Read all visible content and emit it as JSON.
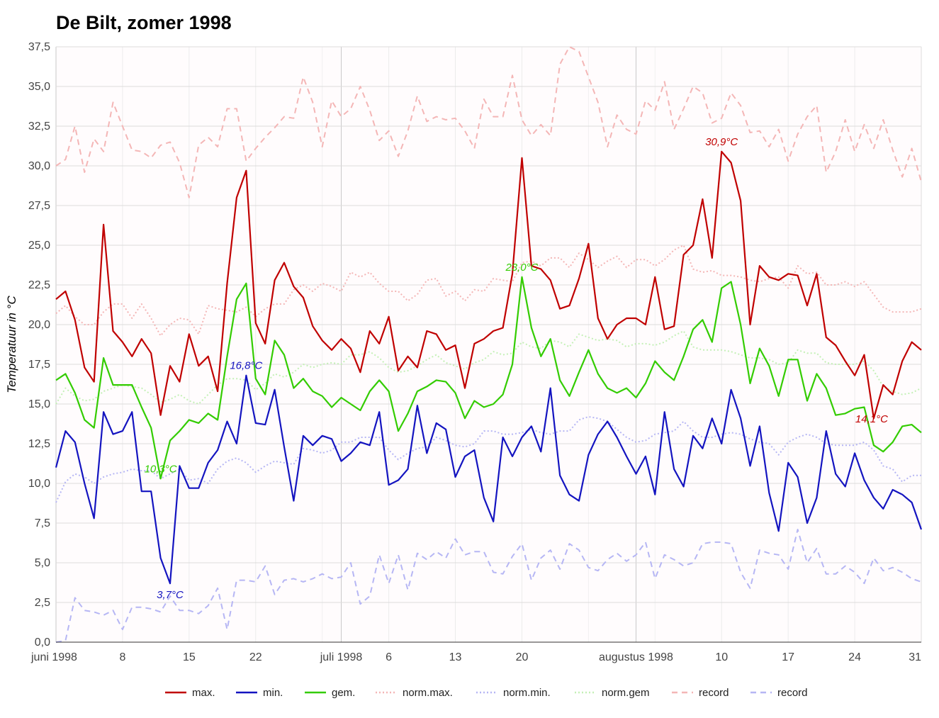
{
  "chart_data": {
    "type": "line",
    "title": "De Bilt, zomer 1998",
    "ylabel": "Temperatuur in °C",
    "ylim": [
      0,
      37.5
    ],
    "xlim": [
      "1998-06-01",
      "1998-08-31"
    ],
    "grid": true,
    "legend_position": "bottom",
    "y_ticks": [
      "0,0",
      "2,5",
      "5,0",
      "7,5",
      "10,0",
      "12,5",
      "15,0",
      "17,5",
      "20,0",
      "22,5",
      "25,0",
      "27,5",
      "30,0",
      "32,5",
      "35,0",
      "37,5"
    ],
    "x_ticks": [
      {
        "date": "1998-06-01",
        "label": "juni 1998"
      },
      {
        "date": "1998-06-08",
        "label": "8"
      },
      {
        "date": "1998-06-15",
        "label": "15"
      },
      {
        "date": "1998-06-22",
        "label": "22"
      },
      {
        "date": "1998-07-01",
        "label": "juli 1998"
      },
      {
        "date": "1998-07-06",
        "label": "6"
      },
      {
        "date": "1998-07-13",
        "label": "13"
      },
      {
        "date": "1998-07-20",
        "label": "20"
      },
      {
        "date": "1998-08-01",
        "label": "augustus 1998"
      },
      {
        "date": "1998-08-10",
        "label": "10"
      },
      {
        "date": "1998-08-17",
        "label": "17"
      },
      {
        "date": "1998-08-24",
        "label": "24"
      },
      {
        "date": "1998-08-31",
        "label": "31"
      }
    ],
    "series": [
      {
        "name": "max.",
        "color": "#c00000",
        "style": "solid",
        "values": [
          21.6,
          22.1,
          20.3,
          17.3,
          16.4,
          26.3,
          19.6,
          18.9,
          18.0,
          19.1,
          18.2,
          14.3,
          17.4,
          16.4,
          19.4,
          17.4,
          18.0,
          15.8,
          22.6,
          28.0,
          29.7,
          20.1,
          18.8,
          22.8,
          23.9,
          22.4,
          21.7,
          19.9,
          19.0,
          18.4,
          19.1,
          18.5,
          17.0,
          19.6,
          18.8,
          20.5,
          17.1,
          18.0,
          17.3,
          19.6,
          19.4,
          18.4,
          18.7,
          16.0,
          18.8,
          19.1,
          19.6,
          19.8,
          23.2,
          30.5,
          23.7,
          23.5,
          22.8,
          21.0,
          21.2,
          22.9,
          25.1,
          20.4,
          19.1,
          20.0,
          20.4,
          20.4,
          20.0,
          23.0,
          19.7,
          19.9,
          24.4,
          25.0,
          27.9,
          24.2,
          30.9,
          30.2,
          27.8,
          20.0,
          23.7,
          23.0,
          22.8,
          23.2,
          23.1,
          21.2,
          23.2,
          19.2,
          18.7,
          17.7,
          16.8,
          18.1,
          14.1,
          16.2,
          15.6,
          17.7,
          18.9,
          18.4
        ]
      },
      {
        "name": "min.",
        "color": "#1414c0",
        "style": "solid",
        "values": [
          11.0,
          13.3,
          12.6,
          10.0,
          7.8,
          14.5,
          13.1,
          13.3,
          14.5,
          9.5,
          9.5,
          5.3,
          3.7,
          11.1,
          9.7,
          9.7,
          11.3,
          12.1,
          13.9,
          12.5,
          16.8,
          13.8,
          13.7,
          15.9,
          12.3,
          8.9,
          13.0,
          12.4,
          13.0,
          12.8,
          11.4,
          11.9,
          12.6,
          12.4,
          14.5,
          9.9,
          10.2,
          10.9,
          14.9,
          11.9,
          13.8,
          13.4,
          10.4,
          11.7,
          12.1,
          9.1,
          7.6,
          12.9,
          11.7,
          12.9,
          13.6,
          12.0,
          16.0,
          10.5,
          9.3,
          8.9,
          11.8,
          13.1,
          13.9,
          12.9,
          11.7,
          10.6,
          11.7,
          9.3,
          14.5,
          10.9,
          9.8,
          13.0,
          12.2,
          14.1,
          12.5,
          15.9,
          14.1,
          11.1,
          13.6,
          9.4,
          7.0,
          11.3,
          10.4,
          7.5,
          9.1,
          13.3,
          10.6,
          9.8,
          11.9,
          10.2,
          9.1,
          8.4,
          9.6,
          9.3,
          8.8,
          7.1
        ]
      },
      {
        "name": "gem.",
        "color": "#33cc00",
        "style": "solid",
        "values": [
          16.5,
          16.9,
          15.7,
          14.0,
          13.5,
          17.9,
          16.2,
          16.2,
          16.2,
          14.8,
          13.5,
          10.3,
          12.7,
          13.3,
          14.0,
          13.8,
          14.4,
          14.0,
          18.0,
          21.6,
          22.6,
          16.6,
          15.6,
          19.0,
          18.1,
          16.0,
          16.6,
          15.8,
          15.5,
          14.8,
          15.4,
          15.0,
          14.6,
          15.8,
          16.5,
          15.8,
          13.3,
          14.4,
          15.8,
          16.1,
          16.5,
          16.4,
          15.7,
          14.1,
          15.2,
          14.8,
          15.0,
          15.6,
          17.5,
          23.0,
          19.8,
          18.0,
          19.1,
          16.5,
          15.5,
          17.0,
          18.4,
          16.9,
          16.0,
          15.7,
          16.0,
          15.4,
          16.3,
          17.7,
          17.0,
          16.5,
          18.0,
          19.7,
          20.3,
          18.9,
          22.3,
          22.7,
          20.0,
          16.3,
          18.5,
          17.4,
          15.5,
          17.8,
          17.8,
          15.2,
          16.9,
          16.0,
          14.3,
          14.4,
          14.7,
          14.8,
          12.4,
          12.0,
          12.6,
          13.6,
          13.7,
          13.2
        ]
      },
      {
        "name": "norm.max.",
        "color": "#f4b6b6",
        "style": "dotted",
        "values": [
          20.7,
          21.2,
          20.5,
          20.0,
          20.0,
          20.8,
          21.3,
          21.3,
          20.4,
          21.3,
          20.4,
          19.3,
          20.0,
          20.4,
          20.3,
          19.4,
          21.2,
          21.0,
          20.9,
          20.8,
          21.1,
          20.5,
          21.0,
          21.3,
          21.3,
          22.2,
          22.5,
          22.1,
          22.6,
          22.4,
          22.1,
          23.3,
          23.0,
          23.3,
          22.6,
          22.1,
          22.1,
          21.5,
          21.9,
          22.8,
          22.9,
          21.8,
          22.1,
          21.5,
          22.2,
          22.1,
          22.9,
          22.8,
          22.7,
          23.9,
          24.0,
          23.7,
          24.2,
          24.2,
          23.6,
          24.5,
          24.1,
          23.6,
          24.0,
          24.3,
          23.6,
          24.1,
          24.1,
          23.7,
          24.1,
          24.7,
          25.0,
          23.5,
          23.3,
          23.4,
          23.1,
          23.1,
          23.0,
          22.8,
          22.7,
          22.9,
          23.0,
          22.3,
          23.7,
          23.2,
          23.3,
          22.5,
          22.5,
          22.7,
          22.4,
          22.7,
          21.9,
          21.1,
          20.8,
          20.8,
          20.8,
          21.0
        ]
      },
      {
        "name": "norm.min.",
        "color": "#b6b6f4",
        "style": "dotted",
        "values": [
          8.8,
          10.1,
          10.6,
          10.4,
          10.0,
          10.4,
          10.6,
          10.7,
          10.9,
          10.8,
          10.8,
          10.3,
          10.6,
          10.9,
          10.2,
          10.3,
          10.0,
          10.9,
          11.4,
          11.6,
          11.3,
          10.7,
          11.1,
          11.4,
          11.3,
          11.2,
          12.2,
          12.1,
          11.9,
          12.1,
          12.6,
          12.6,
          12.9,
          12.9,
          12.9,
          12.1,
          11.5,
          11.9,
          12.2,
          12.3,
          12.9,
          12.7,
          12.4,
          12.3,
          12.5,
          13.3,
          13.3,
          13.1,
          13.1,
          13.2,
          13.4,
          13.2,
          13.1,
          13.3,
          13.3,
          14.0,
          14.2,
          14.1,
          13.9,
          13.4,
          12.9,
          12.6,
          12.7,
          13.1,
          13.2,
          13.3,
          13.9,
          13.3,
          12.9,
          12.9,
          13.1,
          13.2,
          13.1,
          12.8,
          12.6,
          12.5,
          11.8,
          12.6,
          12.9,
          13.1,
          12.9,
          12.5,
          12.4,
          12.4,
          12.4,
          12.6,
          12.1,
          11.1,
          10.9,
          10.1,
          10.5,
          10.5
        ]
      },
      {
        "name": "norm.gem",
        "color": "#c4f0b6",
        "style": "dotted",
        "values": [
          15.0,
          16.0,
          15.5,
          15.2,
          15.3,
          15.8,
          16.0,
          16.2,
          16.1,
          16.0,
          15.6,
          15.1,
          15.3,
          15.6,
          15.2,
          15.0,
          15.6,
          16.2,
          16.6,
          16.6,
          16.5,
          15.9,
          16.3,
          16.9,
          16.7,
          17.0,
          17.5,
          17.3,
          17.5,
          17.6,
          17.5,
          18.1,
          18.1,
          18.3,
          17.9,
          17.3,
          17.0,
          17.1,
          17.4,
          17.8,
          18.1,
          17.6,
          17.4,
          17.2,
          17.6,
          17.8,
          18.3,
          18.1,
          18.2,
          18.9,
          18.6,
          18.5,
          19.0,
          18.9,
          18.6,
          19.4,
          19.2,
          19.0,
          19.1,
          19.0,
          18.6,
          18.8,
          18.8,
          18.7,
          18.9,
          19.3,
          19.6,
          18.6,
          18.4,
          18.4,
          18.4,
          18.3,
          18.1,
          17.9,
          17.9,
          17.8,
          17.5,
          17.6,
          18.4,
          18.2,
          18.2,
          17.6,
          17.5,
          17.5,
          17.5,
          17.7,
          17.1,
          16.1,
          15.8,
          15.6,
          15.7,
          16.0
        ]
      },
      {
        "name": "record",
        "color": "#f4b6b6",
        "style": "dashed",
        "values": [
          30.0,
          30.4,
          32.5,
          29.6,
          31.7,
          30.9,
          34.0,
          32.5,
          31.0,
          30.9,
          30.5,
          31.3,
          31.5,
          30.2,
          28.0,
          31.3,
          31.8,
          31.2,
          33.6,
          33.6,
          30.3,
          31.1,
          31.8,
          32.4,
          33.1,
          33.0,
          35.6,
          34.0,
          31.2,
          34.1,
          33.1,
          33.6,
          35.0,
          33.5,
          31.6,
          32.2,
          30.6,
          32.2,
          34.4,
          32.8,
          33.1,
          32.9,
          33.0,
          32.2,
          31.1,
          34.2,
          33.1,
          33.1,
          35.7,
          32.9,
          31.9,
          32.6,
          31.9,
          36.4,
          37.5,
          37.2,
          35.6,
          34.0,
          31.2,
          33.2,
          32.3,
          32.0,
          34.1,
          33.5,
          35.3,
          32.3,
          33.6,
          35.0,
          34.6,
          32.7,
          33.0,
          34.6,
          33.8,
          32.1,
          32.2,
          31.2,
          32.3,
          30.3,
          32.0,
          33.1,
          33.8,
          29.6,
          30.9,
          32.9,
          30.9,
          32.6,
          31.1,
          32.9,
          31.0,
          29.3,
          31.1,
          29.0
        ]
      },
      {
        "name": "record",
        "color": "#b6b6f4",
        "style": "dashed",
        "values": [
          0.0,
          0.1,
          2.8,
          2.0,
          1.9,
          1.7,
          2.0,
          0.8,
          2.2,
          2.2,
          2.1,
          1.9,
          2.9,
          2.0,
          2.0,
          1.8,
          2.3,
          3.4,
          0.8,
          3.9,
          3.9,
          3.8,
          4.8,
          3.0,
          3.9,
          4.0,
          3.8,
          4.0,
          4.3,
          4.0,
          4.1,
          5.0,
          2.4,
          2.9,
          5.5,
          3.7,
          5.5,
          3.3,
          5.6,
          5.2,
          5.7,
          5.3,
          6.5,
          5.5,
          5.7,
          5.7,
          4.4,
          4.3,
          5.4,
          6.2,
          3.9,
          5.3,
          5.8,
          4.6,
          6.2,
          5.8,
          4.7,
          4.5,
          5.2,
          5.6,
          5.1,
          5.5,
          6.3,
          4.0,
          5.5,
          5.2,
          4.8,
          5.0,
          6.2,
          6.3,
          6.3,
          6.2,
          4.4,
          3.4,
          5.8,
          5.6,
          5.5,
          4.6,
          7.1,
          5.0,
          5.9,
          4.3,
          4.3,
          4.8,
          4.4,
          3.7,
          5.3,
          4.5,
          4.7,
          4.4,
          4.0,
          3.8
        ]
      }
    ],
    "annotations": [
      {
        "text": "30,9°C",
        "index": 70,
        "value": 30.9,
        "color": "#c00000",
        "pos": "above"
      },
      {
        "text": "14,1°C",
        "index": 86,
        "value": 14.1,
        "color": "#c00000",
        "pos": "right"
      },
      {
        "text": "3,7°C",
        "index": 12,
        "value": 3.7,
        "color": "#1414c0",
        "pos": "below"
      },
      {
        "text": "16,8°C",
        "index": 20,
        "value": 16.8,
        "color": "#1414c0",
        "pos": "above"
      },
      {
        "text": "23,0°C",
        "index": 49,
        "value": 23.0,
        "color": "#33cc00",
        "pos": "above"
      },
      {
        "text": "10,3°C",
        "index": 11,
        "value": 10.3,
        "color": "#33cc00",
        "pos": "above"
      }
    ]
  }
}
